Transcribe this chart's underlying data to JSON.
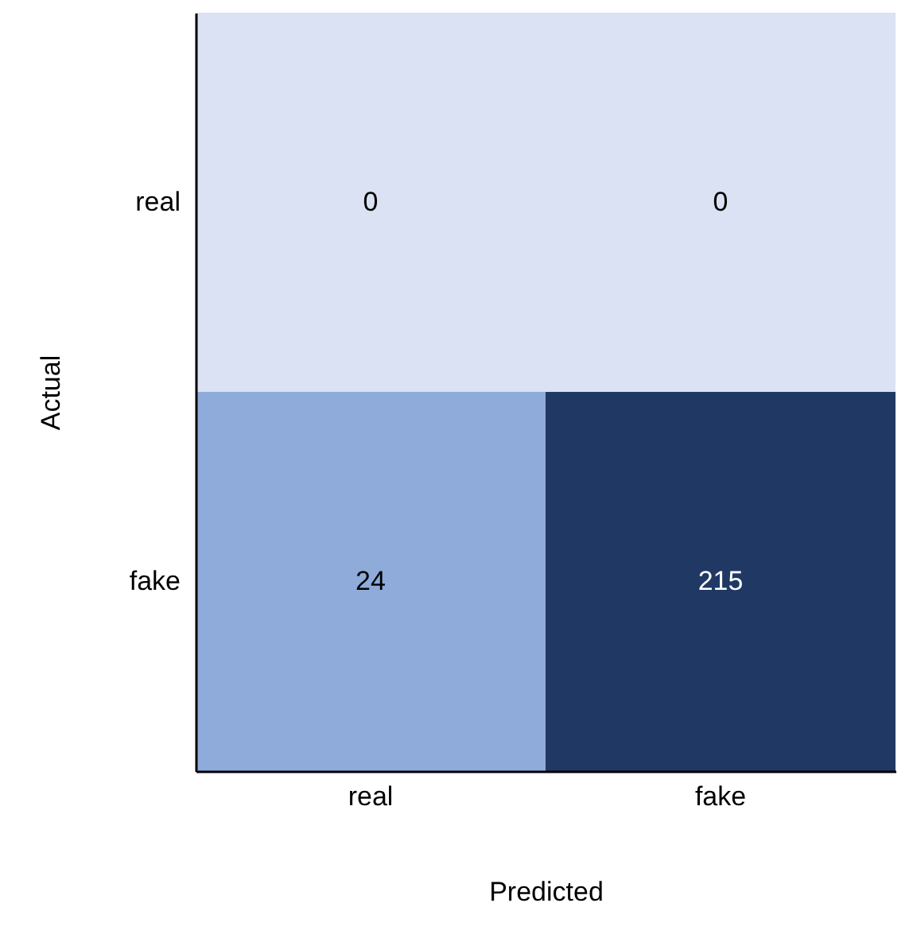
{
  "chart_data": {
    "type": "heatmap",
    "xlabel": "Predicted",
    "ylabel": "Actual",
    "categories": [
      "real",
      "fake"
    ],
    "y_categories": [
      "real",
      "fake"
    ],
    "cells": [
      [
        0,
        0
      ],
      [
        24,
        215
      ]
    ],
    "colors": [
      "#dae2f3",
      "#dae2f3",
      "#8eabda",
      "#203864"
    ],
    "data_labels": true
  }
}
